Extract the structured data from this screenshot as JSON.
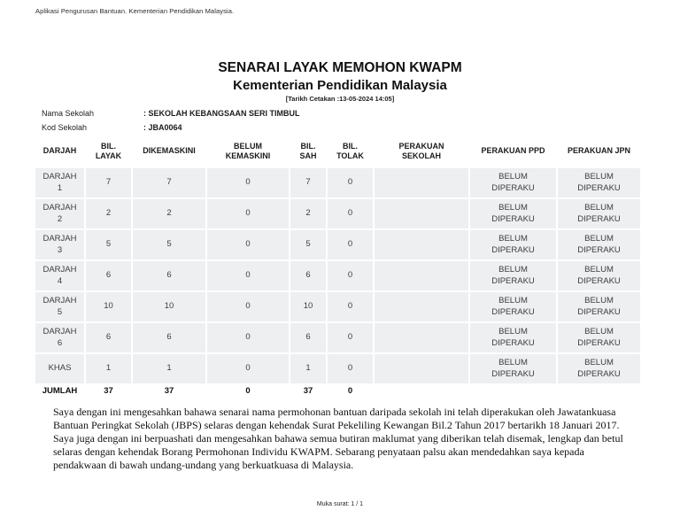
{
  "app_header": "Aplikasi Pengurusan Bantuan. Kementerian Pendidikan Malaysia.",
  "report": {
    "title": "SENARAI LAYAK MEMOHON KWAPM",
    "subtitle": "Kementerian Pendidikan Malaysia",
    "print_date": "[Tarikh Cetakan :13-05-2024 14:05]"
  },
  "school": {
    "name_label": "Nama Sekolah",
    "name_value": ": SEKOLAH KEBANGSAAN SERI TIMBUL",
    "code_label": "Kod Sekolah",
    "code_value": ": JBA0064"
  },
  "table": {
    "headers": [
      "DARJAH",
      "BIL.\nLAYAK",
      "DIKEMASKINI",
      "BELUM\nKEMASKINI",
      "BIL.\nSAH",
      "BIL.\nTOLAK",
      "PERAKUAN\nSEKOLAH",
      "PERAKUAN PPD",
      "PERAKUAN JPN"
    ],
    "rows": [
      [
        "DARJAH\n1",
        "7",
        "7",
        "0",
        "7",
        "0",
        "",
        "BELUM\nDIPERAKU",
        "BELUM\nDIPERAKU"
      ],
      [
        "DARJAH\n2",
        "2",
        "2",
        "0",
        "2",
        "0",
        "",
        "BELUM\nDIPERAKU",
        "BELUM\nDIPERAKU"
      ],
      [
        "DARJAH\n3",
        "5",
        "5",
        "0",
        "5",
        "0",
        "",
        "BELUM\nDIPERAKU",
        "BELUM\nDIPERAKU"
      ],
      [
        "DARJAH\n4",
        "6",
        "6",
        "0",
        "6",
        "0",
        "",
        "BELUM\nDIPERAKU",
        "BELUM\nDIPERAKU"
      ],
      [
        "DARJAH\n5",
        "10",
        "10",
        "0",
        "10",
        "0",
        "",
        "BELUM\nDIPERAKU",
        "BELUM\nDIPERAKU"
      ],
      [
        "DARJAH\n6",
        "6",
        "6",
        "0",
        "6",
        "0",
        "",
        "BELUM\nDIPERAKU",
        "BELUM\nDIPERAKU"
      ],
      [
        "KHAS",
        "1",
        "1",
        "0",
        "1",
        "0",
        "",
        "BELUM\nDIPERAKU",
        "BELUM\nDIPERAKU"
      ]
    ],
    "total_row": [
      "JUMLAH",
      "37",
      "37",
      "0",
      "37",
      "0",
      "",
      "",
      ""
    ]
  },
  "declarations": [
    "Saya dengan ini mengesahkan bahawa senarai nama permohonan bantuan daripada sekolah ini telah diperakukan oleh Jawatankuasa Bantuan Peringkat Sekolah (JBPS) selaras dengan kehendak Surat Pekeliling Kewangan Bil.2 Tahun 2017 bertarikh 18 Januari 2017.",
    "Saya juga dengan ini berpuashati dan mengesahkan bahawa semua butiran maklumat yang diberikan telah disemak, lengkap dan betul selaras dengan kehendak Borang Permohonan Individu KWAPM. Sebarang penyataan palsu akan mendedahkan saya kepada pendakwaan di bawah undang-undang yang berkuatkuasa di Malaysia."
  ],
  "footer": {
    "page_label": "Muka surat: 1 / 1"
  },
  "colors": {
    "cell_bg": "#edeff1",
    "text": "#1c1c1c"
  }
}
